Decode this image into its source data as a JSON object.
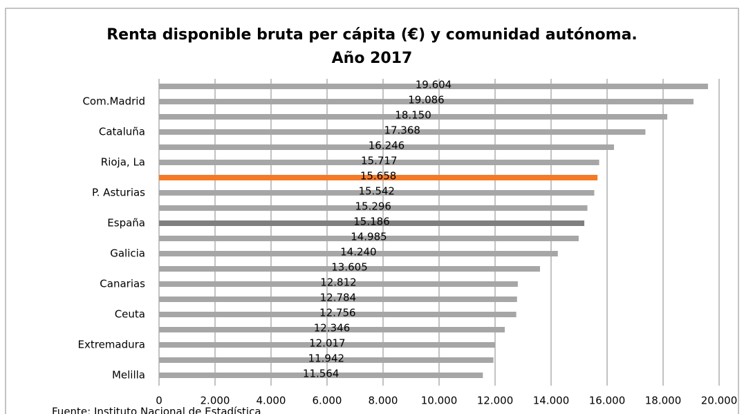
{
  "chart_data": {
    "type": "barh",
    "title": "Renta disponible bruta per cápita (€) y comunidad autónoma. Año 2017",
    "source": "Fuente: Instituto Nacional de Estadística",
    "categories": [
      null,
      "Com.Madrid",
      null,
      "Cataluña",
      null,
      "Rioja, La",
      null,
      "P. Asturias",
      null,
      "España",
      null,
      "Galicia",
      null,
      "Canarias",
      null,
      "Ceuta",
      null,
      "Extremadura",
      null,
      "Melilla"
    ],
    "values": [
      19604,
      19086,
      18150,
      17368,
      16246,
      15717,
      15658,
      15542,
      15296,
      15186,
      14985,
      14240,
      13605,
      12812,
      12784,
      12756,
      12346,
      12017,
      11942,
      11564
    ],
    "value_labels": [
      "19.604",
      "19.086",
      "18.150",
      "17.368",
      "16.246",
      "15.717",
      "15.658",
      "15.542",
      "15.296",
      "15.186",
      "14.985",
      "14.240",
      "13.605",
      "12.812",
      "12.784",
      "12.756",
      "12.346",
      "12.017",
      "11.942",
      "11.564"
    ],
    "colors": [
      "#a6a6a6",
      "#a6a6a6",
      "#a6a6a6",
      "#a6a6a6",
      "#a6a6a6",
      "#a6a6a6",
      "#f47a28",
      "#a6a6a6",
      "#a6a6a6",
      "#7f7f7f",
      "#a6a6a6",
      "#a6a6a6",
      "#a6a6a6",
      "#a6a6a6",
      "#a6a6a6",
      "#a6a6a6",
      "#a6a6a6",
      "#a6a6a6",
      "#a6a6a6",
      "#a6a6a6"
    ],
    "xlim": [
      0,
      20000
    ],
    "xticks": [
      0,
      {
        "value": 2000,
        "label": "2.000"
      },
      {
        "value": 4000,
        "label": "4.000"
      },
      {
        "value": 6000,
        "label": "6.000"
      },
      {
        "value": 8000,
        "label": "8.000"
      },
      {
        "value": 10000,
        "label": "10.000"
      },
      {
        "value": 12000,
        "label": "12.000"
      },
      {
        "value": 14000,
        "label": "14.000"
      },
      {
        "value": 16000,
        "label": "16.000"
      },
      {
        "value": 18000,
        "label": "18.000"
      },
      {
        "value": 20000,
        "label": "20.000"
      }
    ],
    "grid": true
  }
}
